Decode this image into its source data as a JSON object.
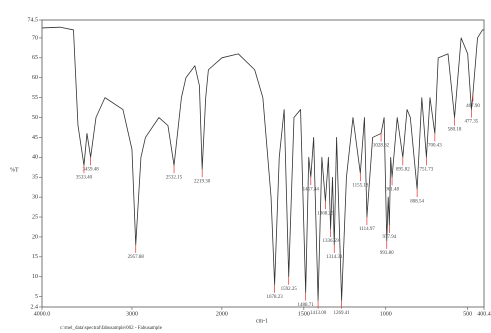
{
  "chart_data": {
    "type": "line",
    "ylabel": "%T",
    "xlabel": "cm-1",
    "footer": "c:\\mel_data\\spectral\\fabusample\\002 - Fabusample",
    "color": "#333333",
    "peak_color": "#e03030",
    "x_break": 2000,
    "xlim": [
      4000,
      400.4
    ],
    "xticks": [
      {
        "value": 4000,
        "label": "4000.0"
      },
      3000,
      2000,
      1500,
      1000,
      500,
      400.4
    ],
    "ylim": [
      2.4,
      74.5
    ],
    "yticks": [
      74.5,
      70,
      65,
      60,
      55,
      50,
      45,
      40,
      35,
      30,
      25,
      20,
      15,
      10,
      5,
      2.4
    ],
    "x": [
      4000,
      3800,
      3650,
      3600,
      3533.4,
      3500,
      3459.48,
      3400,
      3300,
      3100,
      3000,
      2957.88,
      2900,
      2850,
      2700,
      2600,
      2532.15,
      2450,
      2400,
      2300,
      2250,
      2219.3,
      2180,
      2150,
      2000,
      1900,
      1800,
      1750,
      1700,
      1678.23,
      1650,
      1620,
      1592.25,
      1560,
      1520,
      1488.71,
      1470,
      1457.44,
      1440,
      1413,
      1390,
      1368.25,
      1350,
      1336.59,
      1325,
      1314.31,
      1300,
      1269.41,
      1240,
      1200,
      1155.18,
      1130,
      1114.97,
      1080,
      1028.62,
      1010,
      993.8,
      985,
      977.94,
      970,
      961.48,
      930,
      895.82,
      870,
      850,
      808.54,
      780,
      751.73,
      730,
      700.43,
      680,
      620,
      580.18,
      540,
      500,
      477.35,
      467.9,
      440,
      410,
      400.4
    ],
    "values": [
      72.5,
      72.7,
      72,
      48,
      38,
      46,
      40,
      50,
      55,
      52,
      42,
      18,
      40,
      45,
      50,
      48,
      38,
      55,
      60,
      63,
      58,
      37,
      55,
      62,
      65,
      66,
      62,
      55,
      30,
      8,
      40,
      52,
      10,
      50,
      52,
      6,
      40,
      35,
      45,
      4,
      40,
      29,
      40,
      22,
      35,
      18,
      45,
      4,
      35,
      50,
      36,
      50,
      25,
      45,
      46,
      50,
      19,
      30,
      23,
      40,
      35,
      50,
      40,
      52,
      50,
      32,
      55,
      40,
      55,
      46,
      65,
      66,
      50,
      70,
      66,
      52,
      56,
      70,
      72,
      72
    ],
    "peaks": [
      {
        "x": 3459.48,
        "y": 40,
        "label": "3459.48"
      },
      {
        "x": 3533.4,
        "y": 38,
        "label": "3533.40"
      },
      {
        "x": 2957.88,
        "y": 18,
        "label": "2957.88"
      },
      {
        "x": 2532.15,
        "y": 38,
        "label": "2532.15"
      },
      {
        "x": 2219.3,
        "y": 37,
        "label": "2219.30"
      },
      {
        "x": 1678.23,
        "y": 8,
        "label": "1678.23"
      },
      {
        "x": 1592.25,
        "y": 10,
        "label": "1592.25"
      },
      {
        "x": 1488.71,
        "y": 6,
        "label": "1488.71"
      },
      {
        "x": 1457.44,
        "y": 35,
        "label": "1457.44"
      },
      {
        "x": 1413,
        "y": 4,
        "label": "1413.00"
      },
      {
        "x": 1368.25,
        "y": 29,
        "label": "1368.25"
      },
      {
        "x": 1336.59,
        "y": 22,
        "label": "1336.59"
      },
      {
        "x": 1314.31,
        "y": 18,
        "label": "1314.31"
      },
      {
        "x": 1269.41,
        "y": 4,
        "label": "1269.41"
      },
      {
        "x": 1155.18,
        "y": 36,
        "label": "1155.18"
      },
      {
        "x": 1114.97,
        "y": 25,
        "label": "1114.97"
      },
      {
        "x": 1028.62,
        "y": 46,
        "label": "1028.62"
      },
      {
        "x": 993.8,
        "y": 19,
        "label": "993.80"
      },
      {
        "x": 977.94,
        "y": 23,
        "label": "977.94"
      },
      {
        "x": 961.48,
        "y": 35,
        "label": "961.48"
      },
      {
        "x": 895.82,
        "y": 40,
        "label": "895.82"
      },
      {
        "x": 808.54,
        "y": 32,
        "label": "808.54"
      },
      {
        "x": 751.73,
        "y": 40,
        "label": "751.73"
      },
      {
        "x": 700.43,
        "y": 46,
        "label": "700.43"
      },
      {
        "x": 580.18,
        "y": 50,
        "label": "580.18"
      },
      {
        "x": 477.35,
        "y": 52,
        "label": "477.35"
      },
      {
        "x": 467.9,
        "y": 56,
        "label": "467.90"
      }
    ]
  }
}
